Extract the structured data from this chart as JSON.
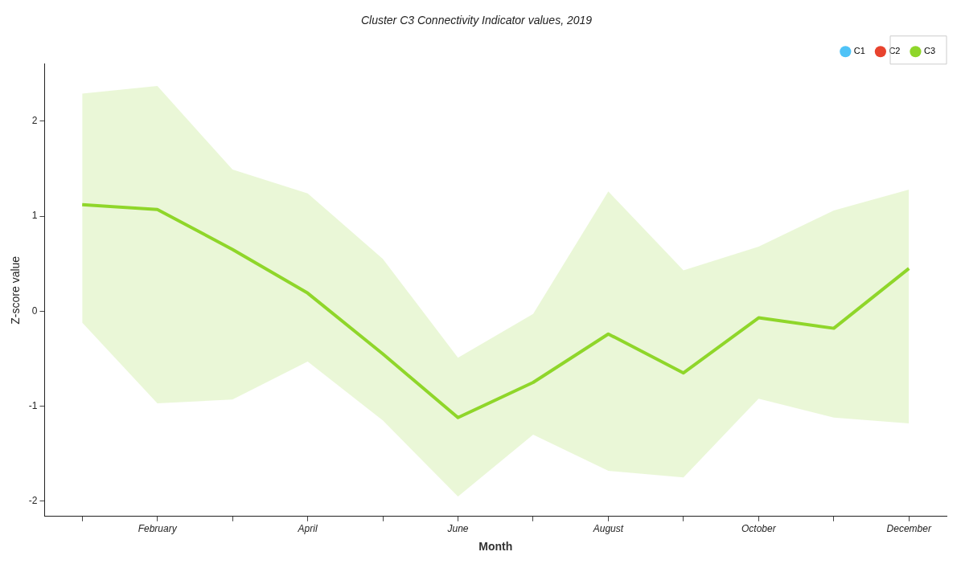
{
  "chart_data": {
    "type": "line",
    "title": "Cluster C3 Connectivity Indicator values, 2019",
    "xlabel": "Month",
    "ylabel": "Z-score value",
    "categories": [
      null,
      "February",
      null,
      "April",
      null,
      "June",
      null,
      "August",
      null,
      "October",
      null,
      "December"
    ],
    "series": [
      {
        "name": "C1",
        "color": "#4fc3f7",
        "values": [
          null,
          null,
          null,
          null,
          null,
          null,
          null,
          null,
          null,
          null,
          null,
          null
        ]
      },
      {
        "name": "C2",
        "color": "#e8432e",
        "values": [
          null,
          null,
          null,
          null,
          null,
          null,
          null,
          null,
          null,
          null,
          null,
          null
        ]
      },
      {
        "name": "C3",
        "color": "#8fd62a",
        "values": [
          1.12,
          1.07,
          0.65,
          0.19,
          -0.45,
          -1.12,
          -0.75,
          -0.24,
          -0.65,
          -0.07,
          -0.18,
          0.45
        ],
        "lower": [
          -0.12,
          -0.97,
          -0.93,
          -0.53,
          -1.15,
          -1.95,
          -1.3,
          -1.68,
          -1.75,
          -0.92,
          -1.12,
          -1.18
        ],
        "upper": [
          2.29,
          2.37,
          1.49,
          1.24,
          0.55,
          -0.49,
          -0.03,
          1.26,
          0.43,
          0.68,
          1.06,
          1.28
        ]
      }
    ],
    "ylim": [
      -2.16,
      2.6
    ],
    "yticks": [
      -2,
      -1,
      0,
      1,
      2
    ],
    "grid": false,
    "legend": "top right",
    "marker": "none",
    "line_style": "solid"
  }
}
